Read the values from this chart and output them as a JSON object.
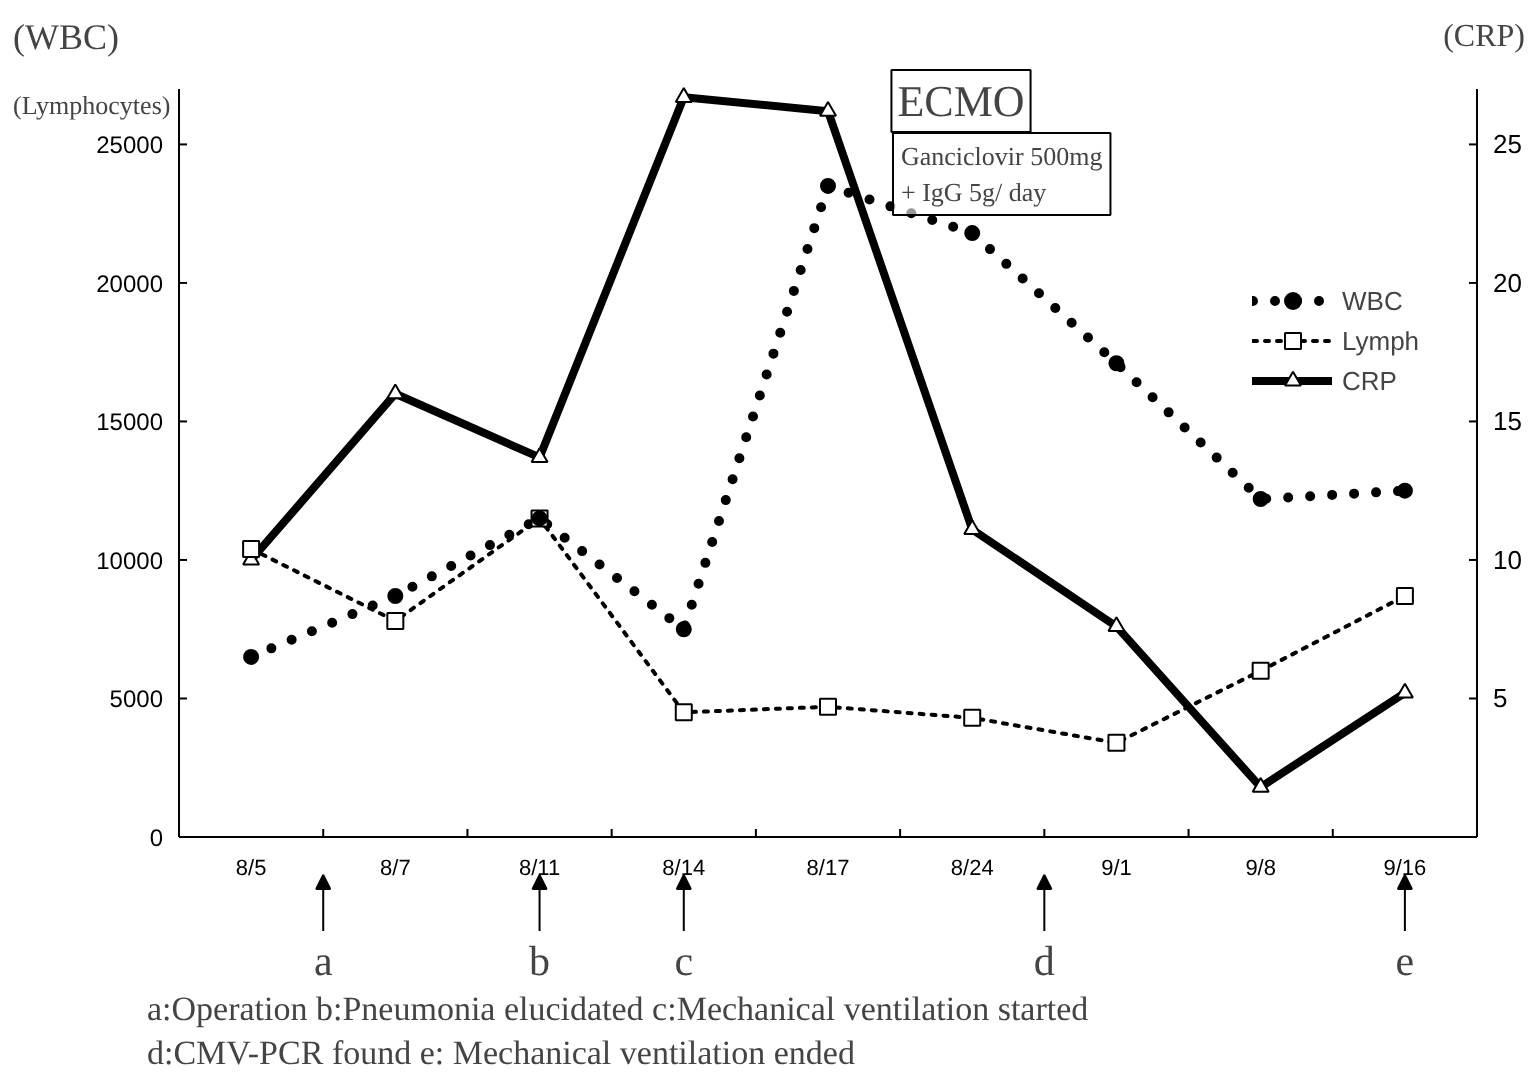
{
  "chart_data": {
    "type": "line",
    "ylabel": "(WBC)\n(Lymphocytes)",
    "y2label": "(CRP)",
    "categories": [
      "8/5",
      "8/7",
      "8/11",
      "8/14",
      "8/17",
      "8/24",
      "9/1",
      "9/8",
      "9/16"
    ],
    "series": [
      {
        "name": "WBC",
        "color": "#000000",
        "line_style": "dotted",
        "marker": "circle",
        "values": [
          6500,
          8700,
          11500,
          7500,
          23500,
          21800,
          17100,
          12200,
          12500
        ]
      },
      {
        "name": "Lymph",
        "color": "#000000",
        "line_style": "dotted",
        "marker": "square",
        "values": [
          10400,
          7800,
          11500,
          4500,
          4700,
          4300,
          3400,
          6000,
          8700
        ]
      },
      {
        "name": "CRP",
        "color": "#000000",
        "line_style": "solid",
        "marker": "triangle",
        "axis": "y2",
        "values": [
          10,
          16,
          13.7,
          26.7,
          26.2,
          11.1,
          7.6,
          1.8,
          5.2
        ]
      }
    ],
    "ylim": [
      0,
      27000
    ],
    "yticks": [
      0,
      5000,
      10000,
      15000,
      20000,
      25000
    ],
    "y2lim": [
      0,
      27
    ],
    "y2ticks": [
      5,
      10,
      15,
      20,
      25
    ],
    "grid": false,
    "legend": "top right",
    "annotations": [
      "ECMO",
      "Ganciclovir 500mg\n+ IgG 5g/ day",
      "a",
      "b",
      "c",
      "d",
      "e",
      "a:Operation    b:Pneumonia elucidated    c:Mechanical ventilation started",
      "d:CMV-PCR found    e: Mechanical ventilation ended"
    ]
  }
}
